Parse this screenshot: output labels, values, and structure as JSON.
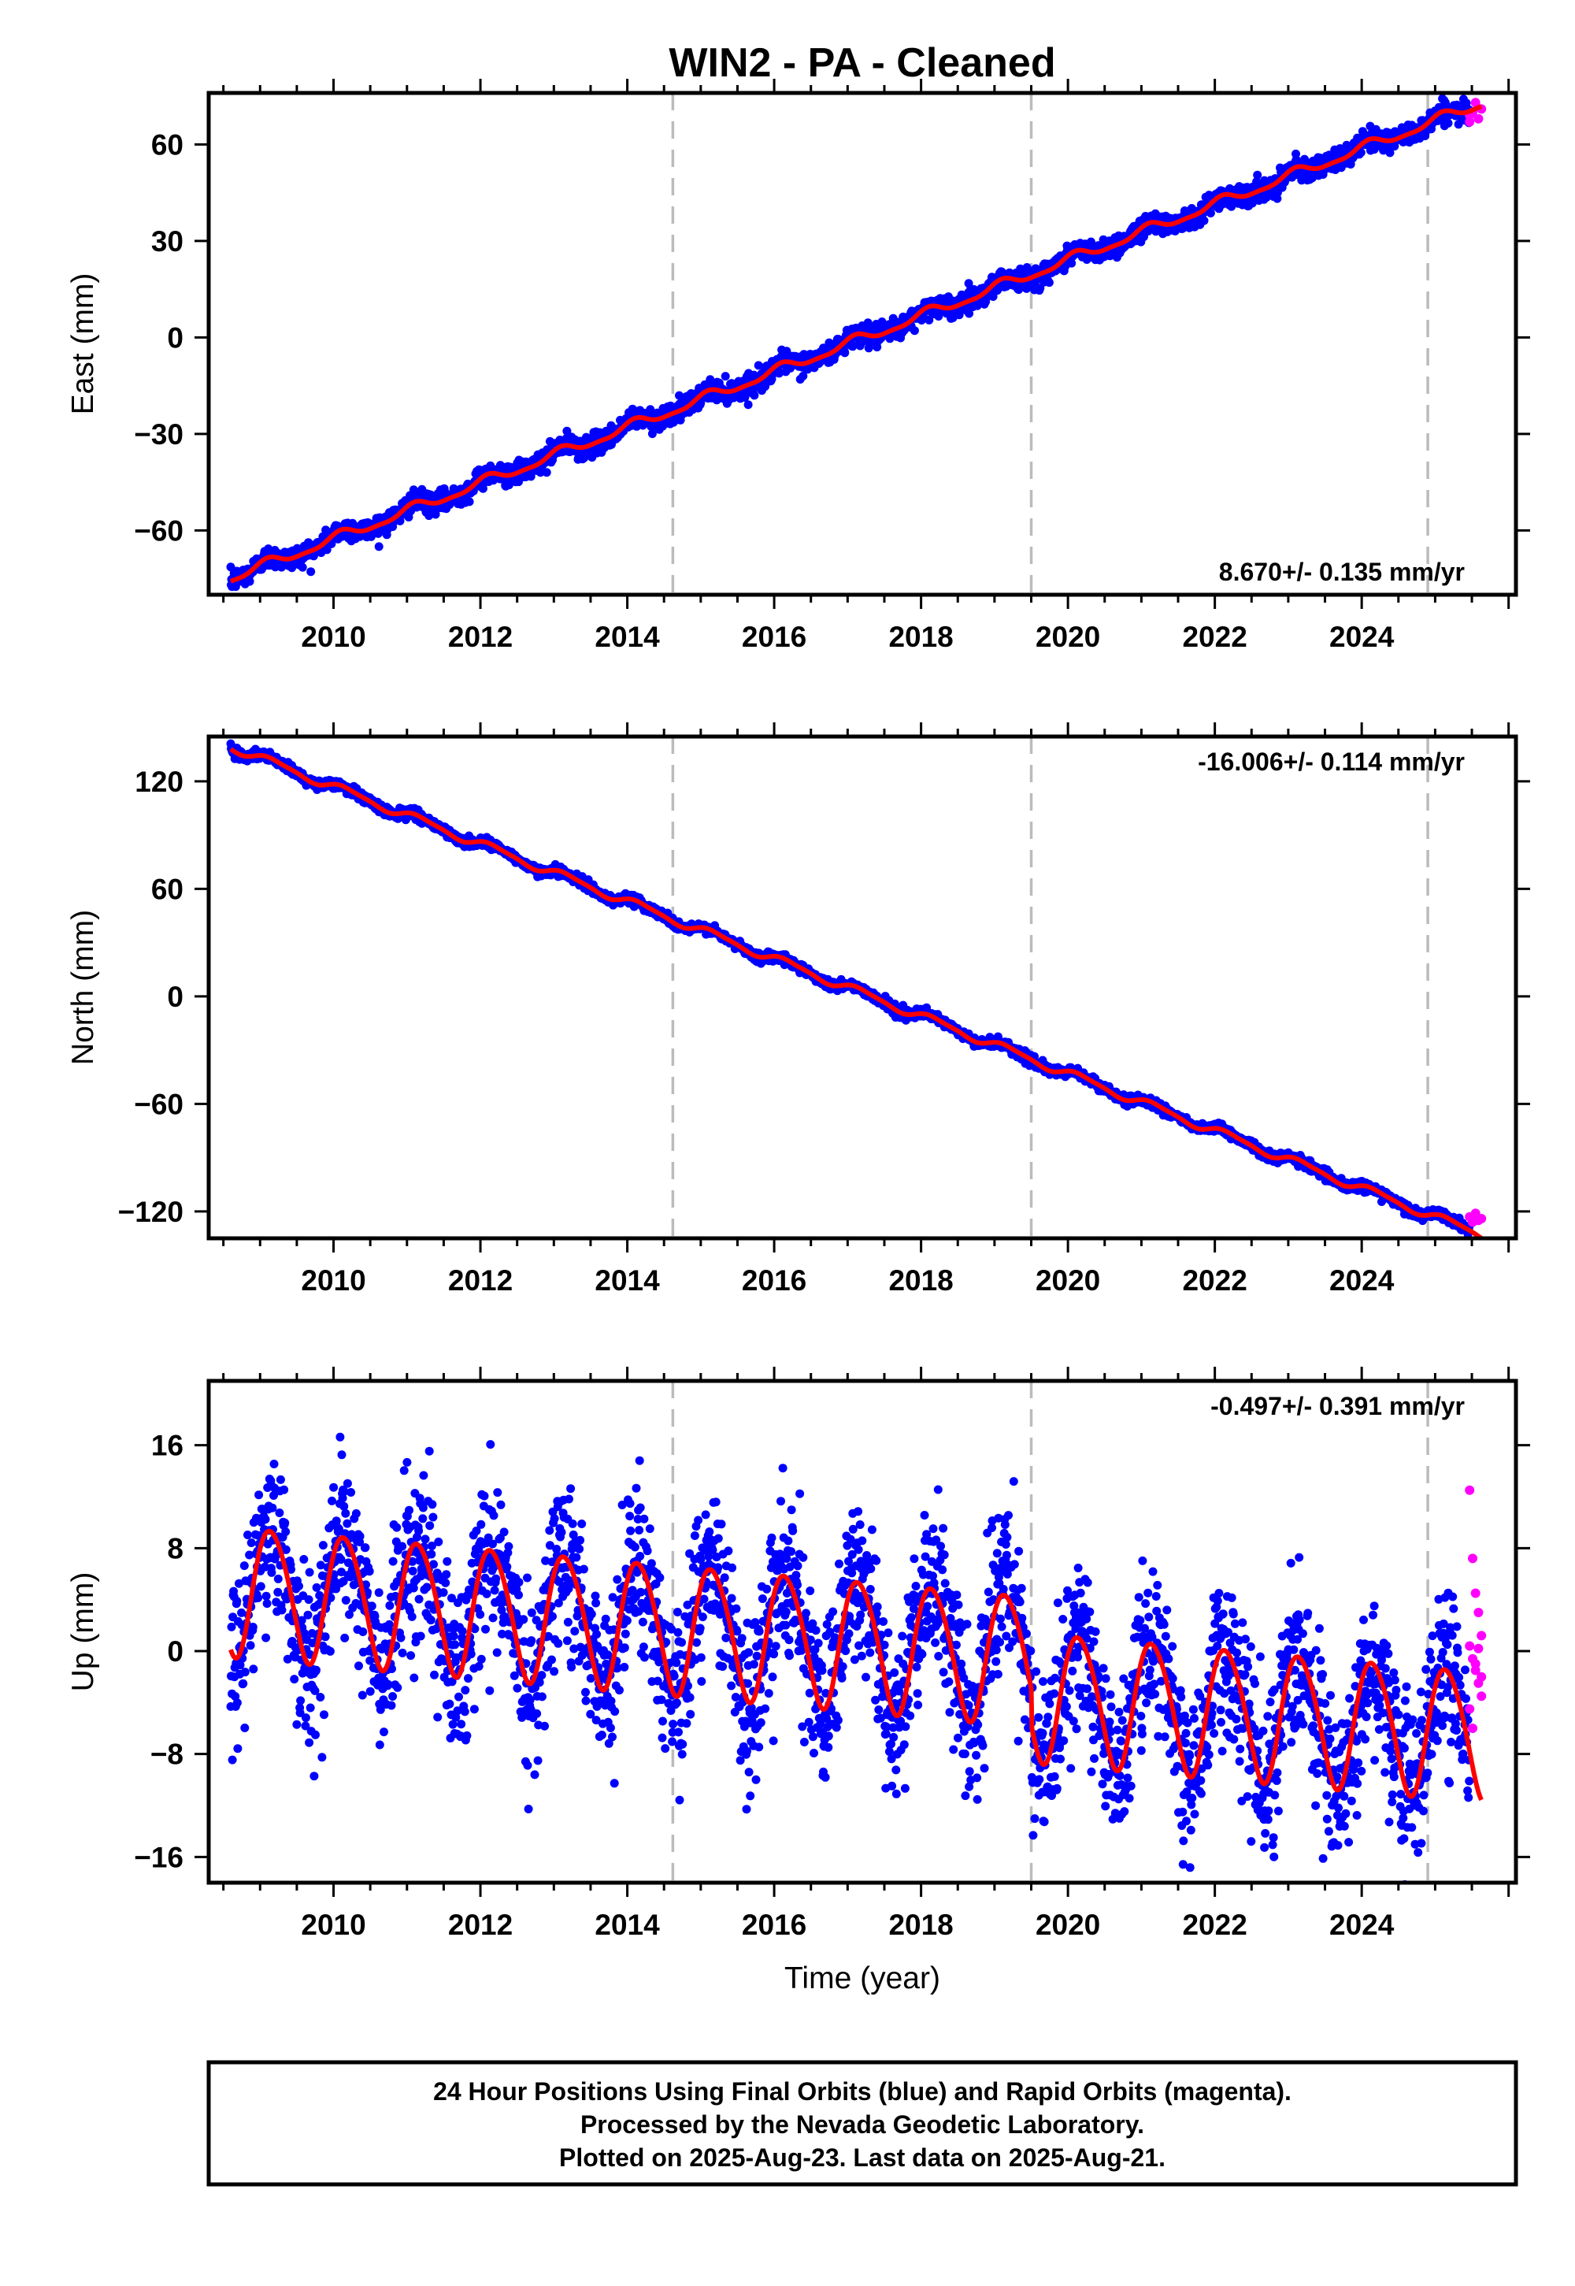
{
  "title": "WIN2  - PA - Cleaned",
  "footer": {
    "lines": [
      "24 Hour Positions Using Final Orbits (blue) and Rapid Orbits (magenta).",
      "Processed by the Nevada Geodetic Laboratory.",
      "Plotted on 2025-Aug-23. Last data on 2025-Aug-21."
    ]
  },
  "colors": {
    "final_orbits": "#0000ff",
    "rapid_orbits": "#ff00ff",
    "model_fit": "#ff0000",
    "break_lines": "#bbbbbb",
    "frame": "#000000"
  },
  "chart_data": [
    {
      "type": "scatter",
      "component": "east",
      "ylabel": "East (mm)",
      "xlabel": "",
      "xlim": [
        2008.3,
        2026.1
      ],
      "ylim": [
        -80,
        76
      ],
      "yticks": [
        -60,
        -30,
        0,
        30,
        60
      ],
      "xticks": [
        2010,
        2012,
        2014,
        2016,
        2018,
        2020,
        2022,
        2024
      ],
      "rate_label": "8.670+/- 0.135 mm/yr",
      "rate_position": "bottom-right",
      "data_range": [
        2008.6,
        2025.63
      ],
      "trend": {
        "intercept_2017": -2.0,
        "slope_mm_per_yr": 8.67
      },
      "seasonal": {
        "annual_amp": 1.5,
        "annual_phase": 1.0,
        "semiannual_amp": 0.5,
        "semiannual_phase": 0.3
      },
      "scatter_sd": 1.6,
      "steps": [
        {
          "epoch": 2019.5,
          "offset": 0.0
        }
      ],
      "rapid_range": [
        2025.47,
        2025.63
      ],
      "rapid_values": [
        67,
        70,
        73,
        68,
        71,
        69
      ],
      "break_epochs": [
        2014.62,
        2019.5,
        2024.9
      ]
    },
    {
      "type": "scatter",
      "component": "north",
      "ylabel": "North (mm)",
      "xlabel": "",
      "xlim": [
        2008.3,
        2026.1
      ],
      "ylim": [
        -135,
        145
      ],
      "yticks": [
        -120,
        -60,
        0,
        60,
        120
      ],
      "xticks": [
        2010,
        2012,
        2014,
        2016,
        2018,
        2020,
        2022,
        2024
      ],
      "rate_label": "-16.006+/- 0.114 mm/yr",
      "rate_position": "top-right",
      "data_range": [
        2008.6,
        2025.63
      ],
      "trend": {
        "intercept_2017": 5.0,
        "slope_mm_per_yr": -16.006
      },
      "seasonal": {
        "annual_amp": 2.2,
        "annual_phase": 0.4,
        "semiannual_amp": 0.6,
        "semiannual_phase": 1.1
      },
      "scatter_sd": 1.3,
      "steps": [],
      "rapid_range": [
        2025.47,
        2025.63
      ],
      "rapid_values": [
        -123,
        -126,
        -121,
        -125,
        -124
      ],
      "break_epochs": [
        2014.62,
        2019.5,
        2024.9
      ]
    },
    {
      "type": "scatter",
      "component": "up",
      "ylabel": "Up (mm)",
      "xlabel": "Time (year)",
      "xlim": [
        2008.3,
        2026.1
      ],
      "ylim": [
        -18,
        21
      ],
      "yticks": [
        -16,
        -8,
        0,
        8,
        16
      ],
      "xticks": [
        2010,
        2012,
        2014,
        2016,
        2018,
        2020,
        2022,
        2024
      ],
      "rate_label": "-0.497+/- 0.391 mm/yr",
      "rate_position": "top-right",
      "data_range": [
        2008.6,
        2025.63
      ],
      "trend": {
        "intercept_2017": 0.7,
        "slope_mm_per_yr": -0.497
      },
      "seasonal": {
        "annual_amp": 5.0,
        "annual_phase": 0.6,
        "semiannual_amp": 0.5,
        "semiannual_phase": 2.0
      },
      "scatter_sd": 3.1,
      "steps": [
        {
          "epoch": 2019.5,
          "offset": -2.8
        }
      ],
      "rapid_range": [
        2025.47,
        2025.63
      ],
      "rapid_values": [
        12.5,
        7.2,
        4.5,
        3.0,
        1.2,
        0.4,
        -0.6,
        -1.5,
        -2.5,
        -3.5,
        -4.5,
        -6.0,
        -1.0,
        0.2,
        -2.0
      ],
      "break_epochs": [
        2014.62,
        2019.5,
        2024.9
      ]
    }
  ]
}
